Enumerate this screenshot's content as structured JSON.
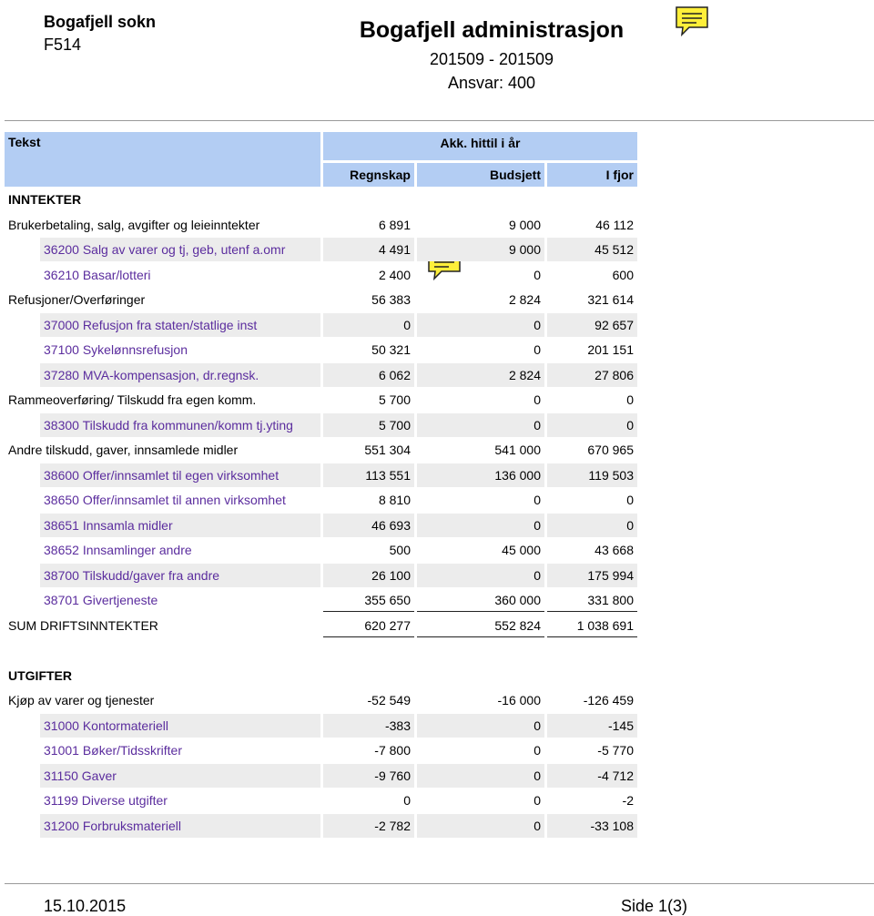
{
  "header": {
    "org": "Bogafjell sokn",
    "code": "F514",
    "title": "Bogafjell administrasjon",
    "period": "201509 - 201509",
    "ansvar": "Ansvar: 400"
  },
  "table": {
    "text_col": "Tekst",
    "group_col": "Akk. hittil i år",
    "columns": [
      "Regnskap",
      "Budsjett",
      "I fjor"
    ],
    "sections": [
      {
        "title": "INNTEKTER",
        "groups": [
          {
            "label": "Brukerbetaling, salg, avgifter og leieinntekter",
            "values": [
              "6 891",
              "9 000",
              "46 112"
            ],
            "accounts": [
              {
                "label": "36200 Salg av varer og tj, geb, utenf a.omr",
                "values": [
                  "4 491",
                  "9 000",
                  "45 512"
                ]
              },
              {
                "label": "36210 Basar/lotteri",
                "values": [
                  "2 400",
                  "0",
                  "600"
                ]
              }
            ]
          },
          {
            "label": "Refusjoner/Overføringer",
            "values": [
              "56 383",
              "2 824",
              "321 614"
            ],
            "accounts": [
              {
                "label": "37000 Refusjon fra staten/statlige inst",
                "values": [
                  "0",
                  "0",
                  "92 657"
                ]
              },
              {
                "label": "37100 Sykelønnsrefusjon",
                "values": [
                  "50 321",
                  "0",
                  "201 151"
                ]
              },
              {
                "label": "37280 MVA-kompensasjon, dr.regnsk.",
                "values": [
                  "6 062",
                  "2 824",
                  "27 806"
                ]
              }
            ]
          },
          {
            "label": "Rammeoverføring/ Tilskudd fra egen komm.",
            "values": [
              "5 700",
              "0",
              "0"
            ],
            "accounts": [
              {
                "label": "38300 Tilskudd fra kommunen/komm tj.yting",
                "values": [
                  "5 700",
                  "0",
                  "0"
                ]
              }
            ]
          },
          {
            "label": "Andre tilskudd, gaver, innsamlede midler",
            "values": [
              "551 304",
              "541 000",
              "670 965"
            ],
            "accounts": [
              {
                "label": "38600 Offer/innsamlet til egen virksomhet",
                "values": [
                  "113 551",
                  "136 000",
                  "119 503"
                ]
              },
              {
                "label": "38650 Offer/innsamlet til annen virksomhet",
                "values": [
                  "8 810",
                  "0",
                  "0"
                ]
              },
              {
                "label": "38651 Innsamla midler",
                "values": [
                  "46 693",
                  "0",
                  "0"
                ]
              },
              {
                "label": "38652 Innsamlinger andre",
                "values": [
                  "500",
                  "45 000",
                  "43 668"
                ]
              },
              {
                "label": "38700 Tilskudd/gaver fra andre",
                "values": [
                  "26 100",
                  "0",
                  "175 994"
                ]
              },
              {
                "label": "38701 Givertjeneste",
                "values": [
                  "355 650",
                  "360 000",
                  "331 800"
                ]
              }
            ]
          }
        ],
        "sum": {
          "label": "SUM DRIFTSINNTEKTER",
          "values": [
            "620 277",
            "552 824",
            "1 038 691"
          ]
        }
      },
      {
        "title": "UTGIFTER",
        "groups": [
          {
            "label": "Kjøp av varer og tjenester",
            "values": [
              "-52 549",
              "-16 000",
              "-126 459"
            ],
            "accounts": [
              {
                "label": "31000 Kontormateriell",
                "values": [
                  "-383",
                  "0",
                  "-145"
                ]
              },
              {
                "label": "31001 Bøker/Tidsskrifter",
                "values": [
                  "-7 800",
                  "0",
                  "-5 770"
                ]
              },
              {
                "label": "31150 Gaver",
                "values": [
                  "-9 760",
                  "0",
                  "-4 712"
                ]
              },
              {
                "label": "31199 Diverse utgifter",
                "values": [
                  "0",
                  "0",
                  "-2"
                ]
              },
              {
                "label": "31200 Forbruksmateriell",
                "values": [
                  "-2 782",
                  "0",
                  "-33 108"
                ]
              }
            ]
          }
        ]
      }
    ]
  },
  "footer": {
    "date": "15.10.2015",
    "page": "Side 1(3)"
  }
}
